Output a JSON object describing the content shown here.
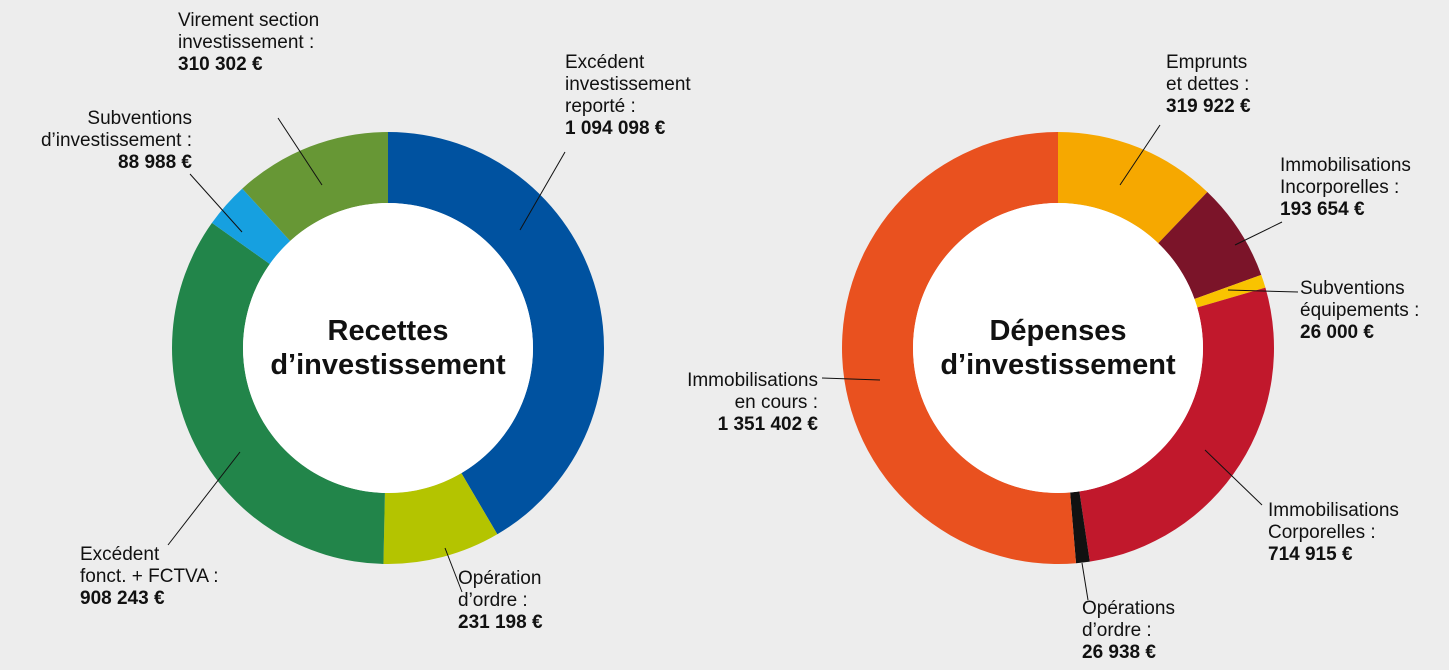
{
  "chart_data": [
    {
      "type": "pie",
      "title": "Recettes\nd’investissement",
      "categories": [
        "Excédent\ninvestissement\nreporté :",
        "Opération\nd’ordre :",
        "Excédent\nfonct. + FCTVA :",
        "Subventions\nd’investissement :",
        "Virement section\ninvestissement :"
      ],
      "values": [
        1094098,
        231198,
        908243,
        88988,
        310302
      ],
      "value_labels": [
        "1 094 098 €",
        "231 198 €",
        "908 243 €",
        "88 988 €",
        "310 302 €"
      ],
      "colors": [
        "#0052a0",
        "#b4c400",
        "#22854a",
        "#16a0e0",
        "#679735"
      ]
    },
    {
      "type": "pie",
      "title": "Dépenses\nd’investissement",
      "categories": [
        "Emprunts\net dettes :",
        "Immobilisations\nIncorporelles :",
        "Subventions\néquipements :",
        "Immobilisations\nCorporelles :",
        "Opérations\nd’ordre :",
        "Immobilisations\nen cours :"
      ],
      "values": [
        319922,
        193654,
        26000,
        714915,
        26938,
        1351402
      ],
      "value_labels": [
        "319 922 €",
        "193 654 €",
        "26 000 €",
        "714 915 €",
        "26 938 €",
        "1 351 402 €"
      ],
      "colors": [
        "#f6a800",
        "#7b1429",
        "#f9c300",
        "#c1182c",
        "#111111",
        "#e9511f"
      ]
    }
  ]
}
